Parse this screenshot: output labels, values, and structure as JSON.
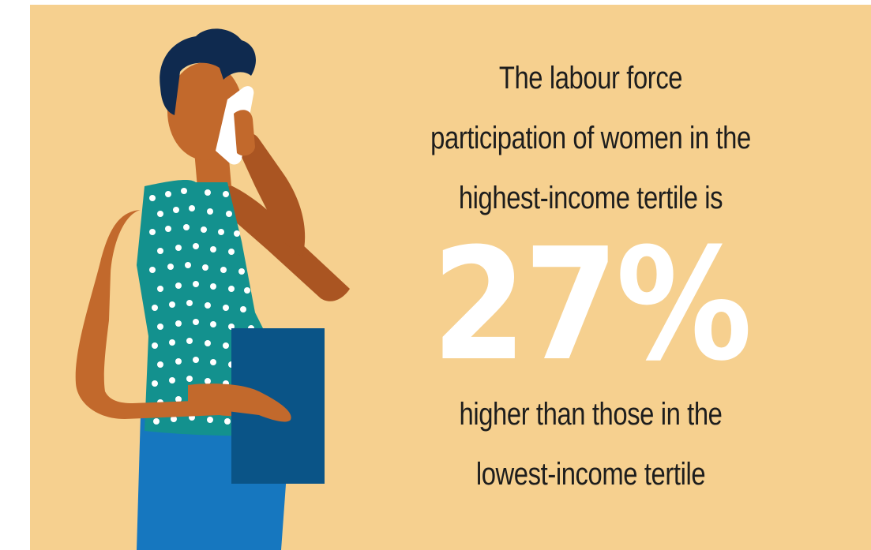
{
  "colors": {
    "background": "#F6D08F",
    "text": "#1D1D1D",
    "highlight_number": "#FFFFFF",
    "skin": "#C2692C",
    "skin_shadow": "#AA5522",
    "hair": "#0F2A4F",
    "top_teal": "#13918E",
    "dots": "#FFFFFF",
    "skirt": "#1677BF",
    "folder": "#0A5487",
    "phone": "#FFFFFF"
  },
  "illustration": {
    "subject": "woman talking on phone holding folder",
    "icons": [
      "woman-illustration",
      "phone-icon",
      "folder-icon"
    ]
  },
  "headline": {
    "line1": "The labour force",
    "line2": "participation of women in the",
    "line3": "highest-income tertile is"
  },
  "stat": {
    "value": "27%"
  },
  "footer_text": {
    "line1": "higher than those in the",
    "line2": "lowest-income tertile"
  }
}
